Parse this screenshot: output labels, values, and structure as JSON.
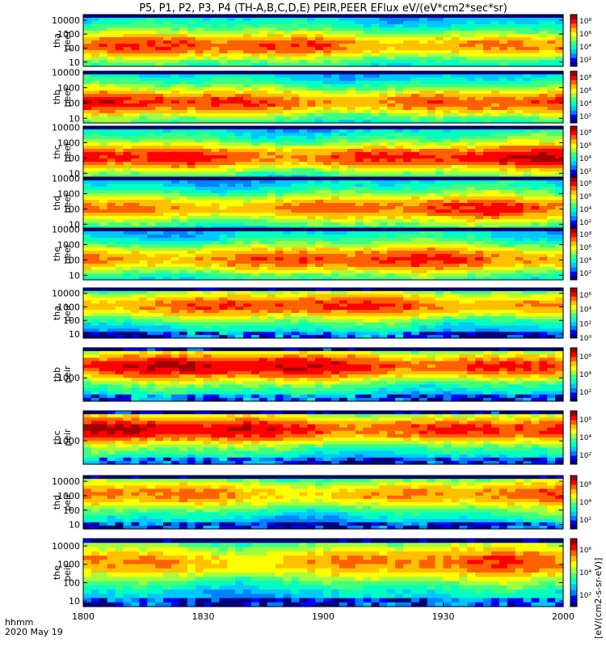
{
  "chart_data": {
    "type": "heatmap",
    "title": "P5, P1, P2, P3, P4 (TH-A,B,C,D,E) PEIR,PEER EFlux eV/(eV*cm2*sec*sr)",
    "x_axis": {
      "label_line1": "hhmm",
      "label_line2": "2020 May 19",
      "ticks": [
        "1800",
        "1830",
        "1900",
        "1930",
        "2000"
      ],
      "range": [
        "18:00",
        "20:00"
      ]
    },
    "colorbar_label": "[eV/(cm2-s-sr-eV)]",
    "panels": [
      {
        "probe": "tha",
        "species": "peer",
        "ylabel": [
          "tha",
          "peer"
        ],
        "yscale": "log",
        "ylim": [
          5,
          25000
        ],
        "yticks": [
          "10",
          "100",
          "1000",
          "10000"
        ],
        "cbar_ticks": [
          "10²",
          "10⁴",
          "10⁶",
          "10⁸"
        ],
        "cbar_range": [
          1,
          9
        ],
        "peak_log_flux": 7.2
      },
      {
        "probe": "thb",
        "species": "peer",
        "ylabel": [
          "thb",
          "peer"
        ],
        "yscale": "log",
        "ylim": [
          5,
          12000
        ],
        "yticks": [
          "10",
          "100",
          "1000",
          "10000"
        ],
        "cbar_ticks": [
          "10²",
          "10⁴",
          "10⁶",
          "10⁸"
        ],
        "cbar_range": [
          1,
          9
        ],
        "peak_log_flux": 7.5
      },
      {
        "probe": "thc",
        "species": "peer",
        "ylabel": [
          "thc",
          "peer"
        ],
        "yscale": "log",
        "ylim": [
          5,
          12000
        ],
        "yticks": [
          "10",
          "100",
          "1000",
          "10000"
        ],
        "cbar_ticks": [
          "10²",
          "10⁴",
          "10⁶",
          "10⁸"
        ],
        "cbar_range": [
          1,
          9
        ],
        "peak_log_flux": 7.8
      },
      {
        "probe": "thd",
        "species": "peer",
        "ylabel": [
          "thd",
          "peer"
        ],
        "yscale": "log",
        "ylim": [
          5,
          12000
        ],
        "yticks": [
          "10",
          "100",
          "1000",
          "10000"
        ],
        "cbar_ticks": [
          "10²",
          "10⁴",
          "10⁶",
          "10⁸"
        ],
        "cbar_range": [
          1,
          9
        ],
        "peak_log_flux": 7.2
      },
      {
        "probe": "the",
        "species": "peer",
        "ylabel": [
          "the",
          "peer"
        ],
        "yscale": "log",
        "ylim": [
          5,
          12000
        ],
        "yticks": [
          "10",
          "100",
          "1000",
          "10000"
        ],
        "cbar_ticks": [
          "10²",
          "10⁴",
          "10⁶",
          "10⁸"
        ],
        "cbar_range": [
          1,
          9
        ],
        "peak_log_flux": 7.3
      },
      {
        "probe": "tha",
        "species": "peir",
        "ylabel": [
          "tha",
          "peir"
        ],
        "yscale": "log",
        "ylim": [
          5,
          25000
        ],
        "yticks": [
          "10",
          "100",
          "1000",
          "10000"
        ],
        "cbar_ticks": [
          "10⁰",
          "10²",
          "10⁴",
          "10⁶"
        ],
        "cbar_range": [
          0,
          7
        ],
        "peak_log_flux": 5.5
      },
      {
        "probe": "thb",
        "species": "peir",
        "ylabel": [
          "thb",
          "peir"
        ],
        "yscale": "log",
        "ylim": [
          200,
          8000
        ],
        "yticks": [
          "1000"
        ],
        "cbar_ticks": [
          "10²",
          "10⁴",
          "10⁶"
        ],
        "cbar_range": [
          1,
          7
        ],
        "peak_log_flux": 6.2
      },
      {
        "probe": "thc",
        "species": "peir",
        "ylabel": [
          "thc",
          "peir"
        ],
        "yscale": "log",
        "ylim": [
          200,
          8000
        ],
        "yticks": [
          "1000"
        ],
        "cbar_ticks": [
          "10²",
          "10⁴",
          "10⁶"
        ],
        "cbar_range": [
          1,
          7
        ],
        "peak_log_flux": 6.2
      },
      {
        "probe": "thd",
        "species": "peir",
        "ylabel": [
          "thd",
          "peir"
        ],
        "yscale": "log",
        "ylim": [
          5,
          25000
        ],
        "yticks": [
          "10",
          "100",
          "1000",
          "10000"
        ],
        "cbar_ticks": [
          "10²",
          "10⁴",
          "10⁶"
        ],
        "cbar_range": [
          1,
          7
        ],
        "peak_log_flux": 5.5
      },
      {
        "probe": "the",
        "species": "peir",
        "ylabel": [
          "the",
          "peir"
        ],
        "yscale": "log",
        "ylim": [
          5,
          25000
        ],
        "yticks": [
          "10",
          "100",
          "1000",
          "10000"
        ],
        "cbar_ticks": [
          "10²",
          "10⁴",
          "10⁶"
        ],
        "cbar_range": [
          1,
          7
        ],
        "peak_log_flux": 5.5
      }
    ],
    "colormap": [
      "#00007f",
      "#0000ff",
      "#0080ff",
      "#00c8ff",
      "#00ffc0",
      "#40ff80",
      "#a0ff40",
      "#ffff00",
      "#ffc000",
      "#ff6000",
      "#ff0000",
      "#9f0000"
    ]
  }
}
